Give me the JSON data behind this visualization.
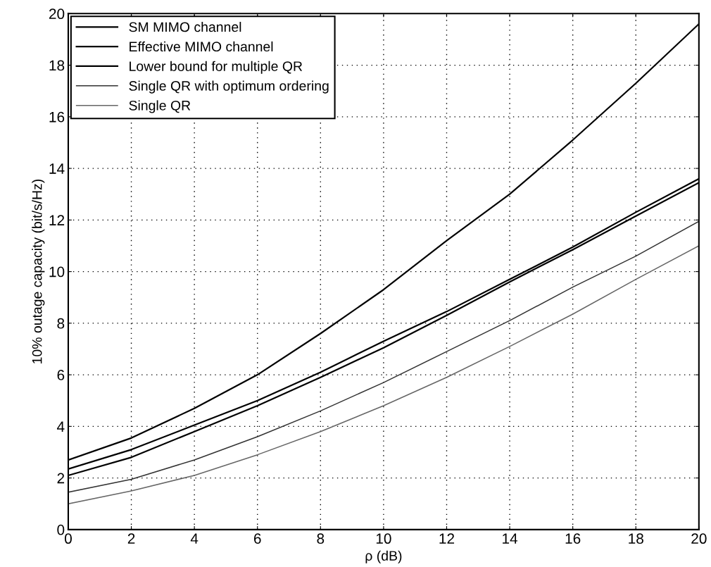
{
  "chart_data": {
    "type": "line",
    "xlabel": "ρ (dB)",
    "ylabel": "10% outage capacity (bit/s/Hz)",
    "x": [
      0,
      2,
      4,
      6,
      8,
      10,
      12,
      14,
      16,
      18,
      20
    ],
    "series": [
      {
        "name": "SM MIMO channel",
        "color": "#000000",
        "values": [
          2.7,
          3.55,
          4.7,
          6.0,
          7.6,
          9.3,
          11.2,
          13.0,
          15.1,
          17.3,
          19.6
        ]
      },
      {
        "name": "Effective MIMO channel",
        "color": "#000000",
        "values": [
          2.35,
          3.1,
          4.05,
          5.0,
          6.1,
          7.3,
          8.45,
          9.7,
          10.95,
          12.3,
          13.6
        ]
      },
      {
        "name": "Lower bound for multiple QR",
        "color": "#000000",
        "values": [
          2.1,
          2.8,
          3.8,
          4.8,
          5.9,
          7.05,
          8.3,
          9.6,
          10.85,
          12.15,
          13.45
        ]
      },
      {
        "name": "Single QR with optimum ordering",
        "color": "#333333",
        "values": [
          1.45,
          1.95,
          2.7,
          3.6,
          4.6,
          5.7,
          6.9,
          8.1,
          9.4,
          10.6,
          11.95
        ]
      },
      {
        "name": "Single QR",
        "color": "#666666",
        "values": [
          1.0,
          1.5,
          2.1,
          2.9,
          3.8,
          4.8,
          5.9,
          7.1,
          8.35,
          9.7,
          11.0
        ]
      }
    ],
    "xlim": [
      0,
      20
    ],
    "ylim": [
      0,
      20
    ],
    "xticks": [
      0,
      2,
      4,
      6,
      8,
      10,
      12,
      14,
      16,
      18,
      20
    ],
    "yticks": [
      0,
      2,
      4,
      6,
      8,
      10,
      12,
      14,
      16,
      18,
      20
    ],
    "grid": true,
    "legend": "top left",
    "line_style": "solid",
    "marker": "none"
  }
}
